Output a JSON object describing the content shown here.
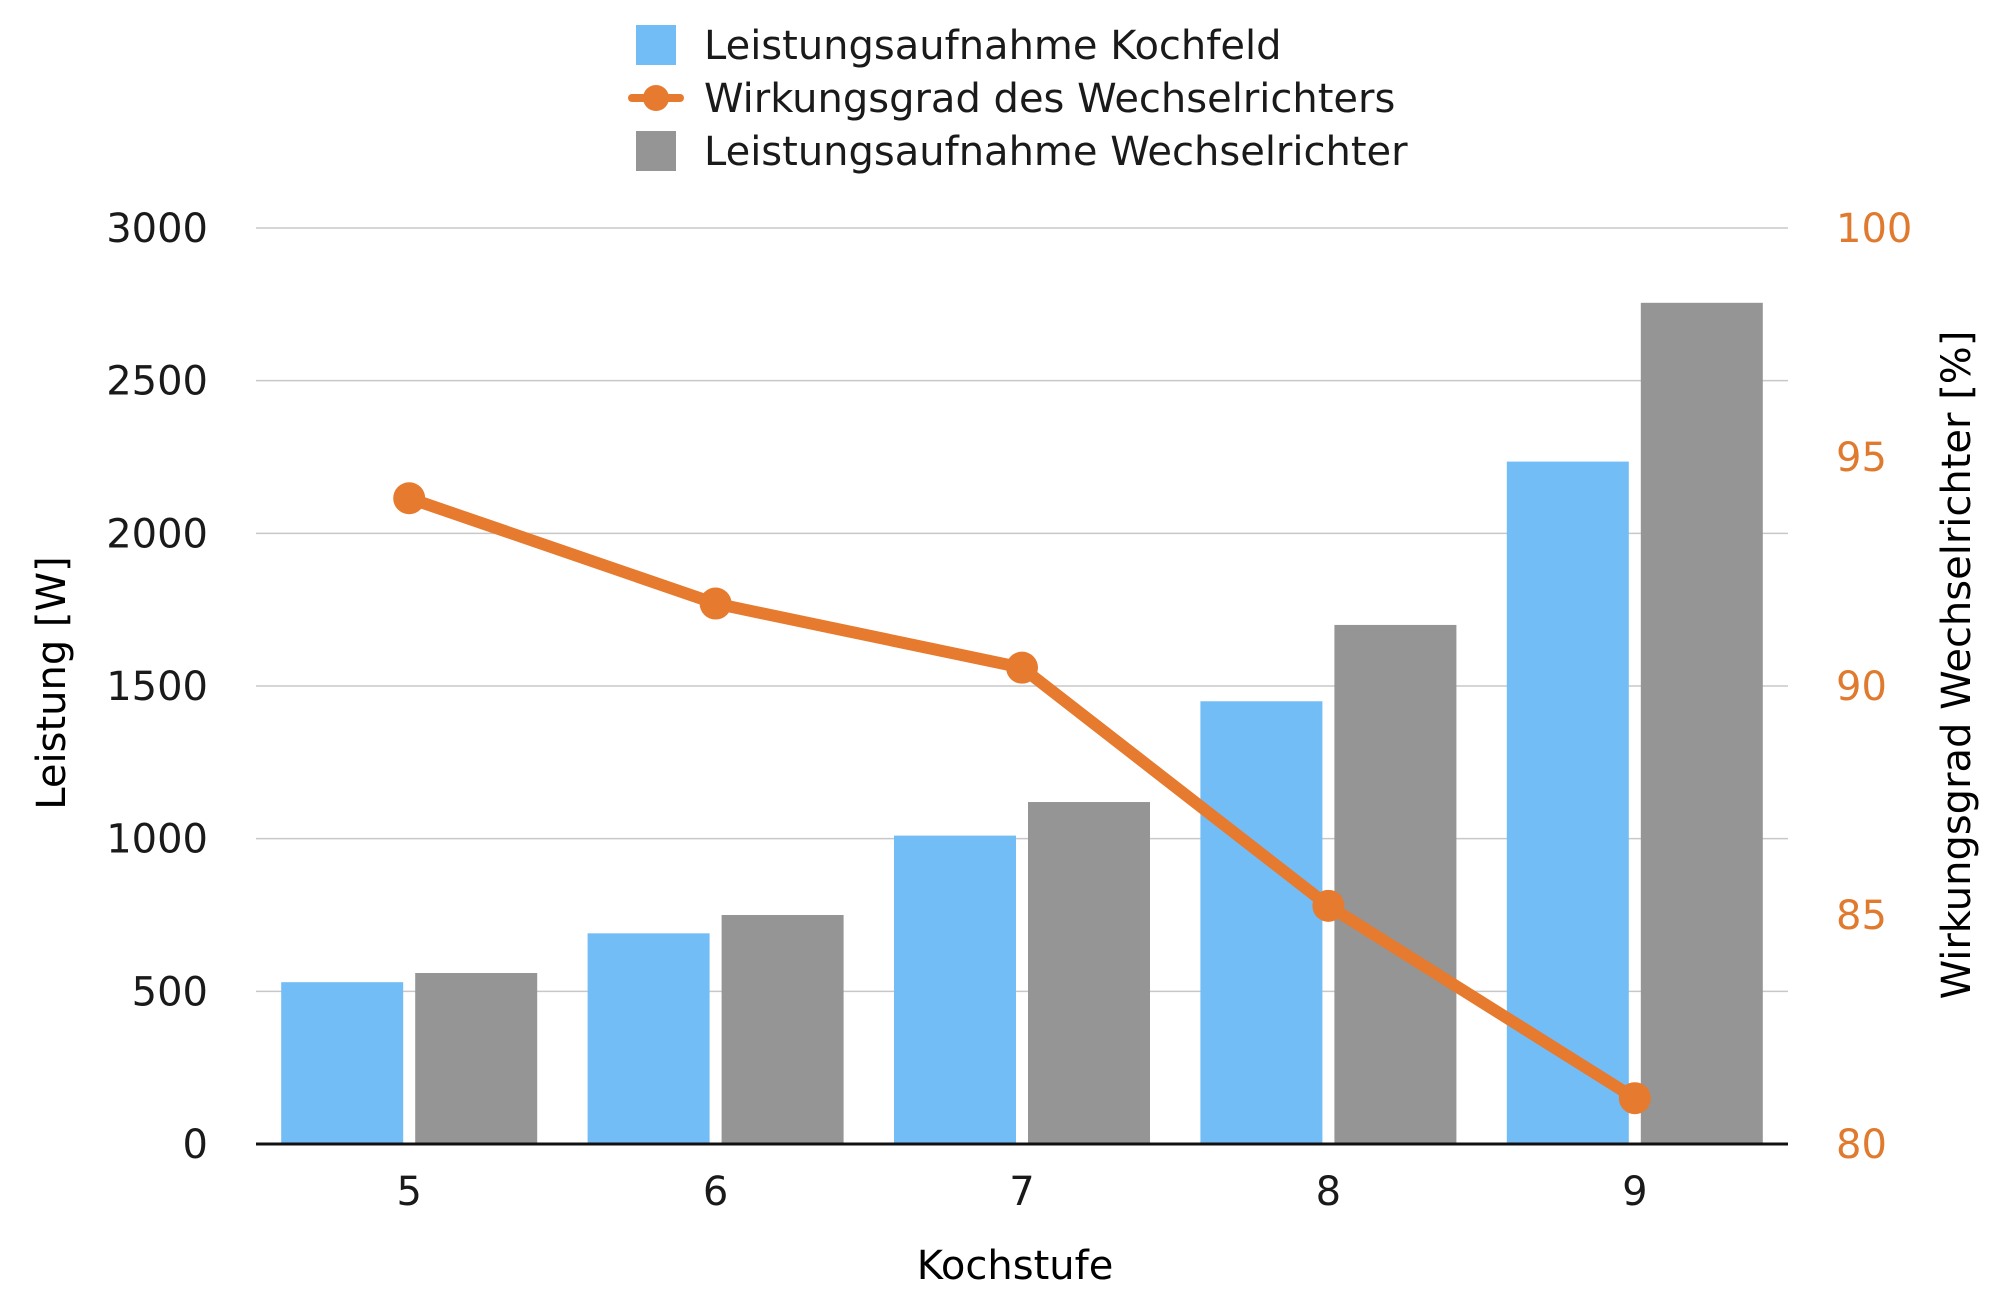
{
  "chart_data": {
    "type": "bar",
    "categories": [
      "5",
      "6",
      "7",
      "8",
      "9"
    ],
    "xlabel": "Kochstufe",
    "ylabel": "Leistung  [W]",
    "y2label": "Wirkungsgrad Wechselrichter [%]",
    "ylim": [
      0,
      3000
    ],
    "y2lim": [
      80,
      100
    ],
    "yticks": [
      "0",
      "500",
      "1000",
      "1500",
      "2000",
      "2500",
      "3000"
    ],
    "y2ticks": [
      "80",
      "85",
      "90",
      "95",
      "100"
    ],
    "grid": true,
    "legend_position": "top-center",
    "series": [
      {
        "name": "Leistungsaufnahme Kochfeld",
        "type": "bar",
        "axis": "left",
        "color": "#73bdf7",
        "values": [
          530,
          690,
          1010,
          1450,
          2235
        ]
      },
      {
        "name": "Wirkungsgrad des Wechselrichters",
        "type": "line",
        "axis": "right",
        "color": "#e67a2e",
        "values": [
          94.1,
          91.8,
          90.4,
          85.2,
          81.0
        ]
      },
      {
        "name": "Leistungsaufnahme Wechselrichter",
        "type": "bar",
        "axis": "left",
        "color": "#959595",
        "values": [
          560,
          750,
          1120,
          1700,
          2755
        ]
      }
    ]
  }
}
